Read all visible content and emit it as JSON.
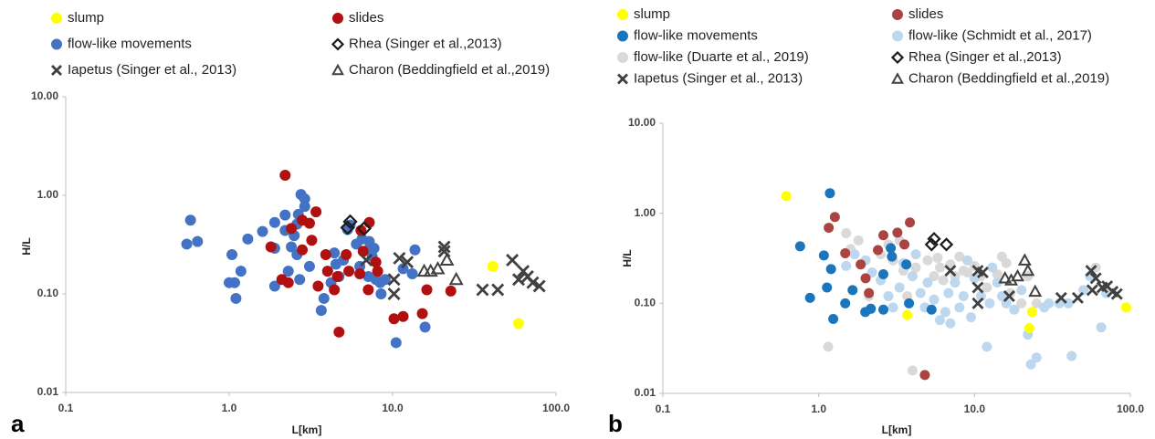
{
  "chart_data": [
    {
      "type": "scatter",
      "panel_label": "a",
      "xlabel": "L[km]",
      "ylabel": "H/L",
      "xlog": true,
      "ylog": true,
      "xlim": [
        0.1,
        100
      ],
      "ylim": [
        0.01,
        10
      ],
      "xticks": [
        0.1,
        {
          "value": 1,
          "label": "1.0"
        },
        {
          "value": 10,
          "label": "10.0"
        },
        {
          "value": 100,
          "label": "100.0"
        }
      ],
      "yticks": [
        0.01,
        {
          "value": 0.1,
          "label": "0.10"
        },
        {
          "value": 1,
          "label": "1.00"
        },
        {
          "value": 10,
          "label": "10.00"
        }
      ],
      "series": [
        {
          "name": "slump",
          "color": "#ffff00",
          "marker": "circle",
          "x": [
            41,
            59
          ],
          "y": [
            0.19,
            0.05
          ]
        },
        {
          "name": "slides",
          "color": "#b01010",
          "marker": "circle",
          "x": [
            2.2,
            3.4,
            3.1,
            2.8,
            2.4,
            3.2,
            2.8,
            1.8,
            2.1,
            2.3,
            3.5,
            4.0,
            3.9,
            5.2,
            6.3,
            7.2,
            6.4,
            7.9,
            8.1,
            6.6,
            5.4,
            4.7,
            10.2,
            11.6,
            15.2,
            16.2,
            22.7,
            4.6,
            7.1,
            4.4
          ],
          "y": [
            1.6,
            0.68,
            0.52,
            0.56,
            0.46,
            0.35,
            0.28,
            0.3,
            0.14,
            0.13,
            0.12,
            0.17,
            0.25,
            0.25,
            0.16,
            0.53,
            0.44,
            0.21,
            0.17,
            0.27,
            0.17,
            0.041,
            0.056,
            0.059,
            0.063,
            0.11,
            0.107,
            0.15,
            0.11,
            0.11
          ]
        },
        {
          "name": "flow-like movements",
          "color": "#4472c4",
          "marker": "circle",
          "x": [
            0.58,
            0.55,
            0.64,
            1.04,
            1.0,
            1.08,
            1.1,
            1.18,
            1.3,
            1.6,
            1.9,
            1.9,
            1.9,
            2.2,
            2.2,
            2.3,
            2.4,
            2.5,
            2.6,
            2.65,
            2.75,
            2.9,
            2.9,
            2.6,
            2.7,
            3.1,
            3.66,
            3.8,
            4.2,
            4.4,
            4.7,
            4.5,
            5.0,
            5.5,
            5.3,
            6.0,
            6.3,
            6.5,
            7.1,
            7.5,
            7.1,
            7.9,
            8.5,
            9.0,
            7.2,
            7.7,
            10.5,
            13.7,
            15.8,
            13.2,
            11.6,
            8.4
          ],
          "y": [
            0.56,
            0.32,
            0.34,
            0.25,
            0.13,
            0.13,
            0.09,
            0.17,
            0.36,
            0.43,
            0.53,
            0.29,
            0.12,
            0.63,
            0.44,
            0.17,
            0.3,
            0.39,
            0.51,
            0.64,
            1.02,
            0.92,
            0.77,
            0.25,
            0.14,
            0.19,
            0.068,
            0.09,
            0.13,
            0.26,
            0.15,
            0.2,
            0.22,
            0.5,
            0.45,
            0.32,
            0.19,
            0.36,
            0.28,
            0.24,
            0.15,
            0.14,
            0.1,
            0.14,
            0.34,
            0.29,
            0.032,
            0.28,
            0.046,
            0.16,
            0.18,
            0.13
          ]
        },
        {
          "name": "Rhea (Singer et al.,2013)",
          "color": "#1a1a1a",
          "marker": "diamond",
          "x": [
            5.5,
            5.3,
            6.7
          ],
          "y": [
            0.54,
            0.47,
            0.46
          ]
        },
        {
          "name": "Iapetus (Singer et al., 2013)",
          "color": "#404040",
          "marker": "x",
          "x": [
            6.9,
            10.2,
            10.2,
            11.0,
            12.3,
            20.7,
            20.7,
            35.5,
            44,
            54,
            59,
            63,
            67,
            72,
            79
          ],
          "y": [
            0.22,
            0.14,
            0.1,
            0.23,
            0.21,
            0.3,
            0.27,
            0.11,
            0.11,
            0.22,
            0.14,
            0.17,
            0.15,
            0.13,
            0.12
          ]
        },
        {
          "name": "Charon (Beddingfield et al.,2019)",
          "color": "#404040",
          "marker": "triangle",
          "x": [
            15.6,
            17.1,
            18.9,
            21.5,
            24.5
          ],
          "y": [
            0.17,
            0.17,
            0.18,
            0.22,
            0.14
          ]
        }
      ]
    },
    {
      "type": "scatter",
      "panel_label": "b",
      "xlabel": "L[km]",
      "ylabel": "H/L",
      "xlog": true,
      "ylog": true,
      "xlim": [
        0.1,
        100
      ],
      "ylim": [
        0.01,
        10
      ],
      "xticks": [
        0.1,
        {
          "value": 1,
          "label": "1.0"
        },
        {
          "value": 10,
          "label": "10.0"
        },
        {
          "value": 100,
          "label": "100.0"
        }
      ],
      "yticks": [
        0.01,
        {
          "value": 0.1,
          "label": "0.10"
        },
        {
          "value": 1,
          "label": "1.00"
        },
        {
          "value": 10,
          "label": "10.00"
        }
      ],
      "series": [
        {
          "name": "slump",
          "color": "#ffff00",
          "marker": "circle",
          "x": [
            0.62,
            3.7,
            23.4,
            22.5,
            94
          ],
          "y": [
            1.55,
            0.074,
            0.08,
            0.053,
            0.09
          ]
        },
        {
          "name": "slides",
          "color": "#a94442",
          "marker": "circle",
          "x": [
            1.16,
            1.27,
            1.48,
            1.86,
            2.0,
            2.1,
            2.4,
            2.6,
            3.2,
            3.55,
            3.85,
            4.8
          ],
          "y": [
            0.69,
            0.91,
            0.36,
            0.27,
            0.19,
            0.13,
            0.39,
            0.57,
            0.61,
            0.45,
            0.79,
            0.016
          ]
        },
        {
          "name": "flow-like movements",
          "color": "#1a75bc",
          "marker": "circle",
          "x": [
            1.18,
            0.76,
            0.88,
            1.08,
            1.2,
            1.13,
            1.24,
            1.48,
            1.65,
            1.99,
            2.16,
            2.6,
            2.6,
            2.95,
            2.9,
            3.8,
            5.3,
            3.65
          ],
          "y": [
            1.67,
            0.43,
            0.115,
            0.34,
            0.24,
            0.15,
            0.067,
            0.1,
            0.14,
            0.08,
            0.087,
            0.085,
            0.21,
            0.33,
            0.41,
            0.1,
            0.085,
            0.27
          ]
        },
        {
          "name": "flow-like (Schmidt et al., 2017)",
          "color": "#bdd7ee",
          "marker": "circle",
          "x": [
            1.5,
            1.7,
            2.0,
            2.2,
            2.5,
            2.8,
            3.0,
            3.3,
            3.5,
            4.0,
            4.2,
            4.5,
            4.8,
            5.0,
            5.5,
            6.0,
            6.5,
            6.8,
            7.0,
            7.5,
            8.0,
            8.5,
            9,
            9.5,
            10,
            11,
            12,
            12.5,
            13,
            14,
            15,
            16,
            18,
            20,
            22,
            23,
            25,
            28,
            30,
            35,
            40,
            42,
            50,
            55,
            65,
            70
          ],
          "y": [
            0.26,
            0.35,
            0.3,
            0.22,
            0.18,
            0.12,
            0.09,
            0.15,
            0.28,
            0.2,
            0.35,
            0.13,
            0.09,
            0.17,
            0.11,
            0.065,
            0.08,
            0.13,
            0.06,
            0.17,
            0.09,
            0.12,
            0.3,
            0.07,
            0.19,
            0.12,
            0.033,
            0.1,
            0.25,
            0.17,
            0.12,
            0.1,
            0.085,
            0.14,
            0.045,
            0.021,
            0.025,
            0.09,
            0.1,
            0.1,
            0.1,
            0.026,
            0.14,
            0.2,
            0.054,
            0.13
          ]
        },
        {
          "name": "flow-like (Duarte et al., 2019)",
          "color": "#d9d9d9",
          "marker": "circle",
          "x": [
            1.15,
            1.5,
            1.6,
            1.8,
            2.1,
            2.5,
            2.8,
            3.0,
            3.3,
            3.5,
            3.7,
            4.0,
            4.2,
            5.0,
            5.5,
            5.8,
            6.0,
            6.3,
            7.0,
            7.5,
            8.0,
            8.5,
            9.0,
            10,
            11,
            12,
            14,
            15,
            16,
            17,
            20,
            22,
            25,
            60
          ],
          "y": [
            0.033,
            0.6,
            0.4,
            0.5,
            0.12,
            0.35,
            0.45,
            0.3,
            0.5,
            0.23,
            0.12,
            0.018,
            0.25,
            0.3,
            0.2,
            0.32,
            0.25,
            0.18,
            0.27,
            0.2,
            0.33,
            0.23,
            0.22,
            0.26,
            0.2,
            0.15,
            0.21,
            0.33,
            0.28,
            0.13,
            0.1,
            0.2,
            0.1,
            0.25
          ]
        },
        {
          "name": "Rhea (Singer et al.,2013)",
          "color": "#1a1a1a",
          "marker": "diamond",
          "x": [
            5.5,
            5.3,
            6.6
          ],
          "y": [
            0.52,
            0.45,
            0.45
          ]
        },
        {
          "name": "Iapetus (Singer et al., 2013)",
          "color": "#404040",
          "marker": "x",
          "x": [
            7.0,
            10.5,
            10.5,
            11.3,
            10.5,
            16.7,
            36,
            46,
            56,
            60,
            66,
            71,
            77,
            82,
            57
          ],
          "y": [
            0.23,
            0.23,
            0.1,
            0.22,
            0.15,
            0.12,
            0.115,
            0.115,
            0.23,
            0.19,
            0.15,
            0.155,
            0.135,
            0.127,
            0.14
          ]
        },
        {
          "name": "Charon (Beddingfield et al.,2019)",
          "color": "#404040",
          "marker": "triangle",
          "x": [
            15.7,
            17.2,
            18.9,
            21,
            22,
            24.5
          ],
          "y": [
            0.19,
            0.18,
            0.2,
            0.3,
            0.23,
            0.135
          ]
        }
      ]
    }
  ]
}
